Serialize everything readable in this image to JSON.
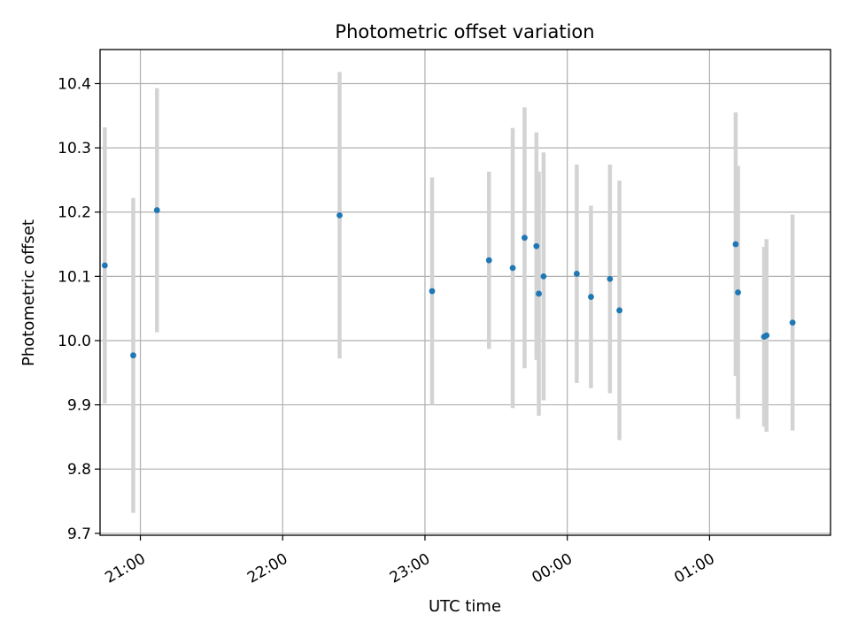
{
  "chart_data": {
    "type": "scatter",
    "title": "Photometric offset variation",
    "xlabel": "UTC time",
    "ylabel": "Photometric offset",
    "grid": true,
    "legend": "none",
    "x_tick_labels": [
      "21:00",
      "22:00",
      "23:00",
      "00:00",
      "01:00"
    ],
    "y_tick_labels": [
      "9.7",
      "9.8",
      "9.9",
      "10.0",
      "10.1",
      "10.2",
      "10.3",
      "10.4"
    ],
    "xlim": [
      "20:43",
      "01:51"
    ],
    "ylim": [
      9.697,
      10.453
    ],
    "colors": {
      "point": "#1f77b4",
      "errorbar": "#d3d3d3",
      "grid": "#b0b0b0"
    },
    "series": [
      {
        "points": [
          {
            "time": "20:45",
            "y": 10.117,
            "err": 0.215
          },
          {
            "time": "20:57",
            "y": 9.977,
            "err": 0.245
          },
          {
            "time": "21:07",
            "y": 10.203,
            "err": 0.19
          },
          {
            "time": "22:24",
            "y": 10.195,
            "err": 0.223
          },
          {
            "time": "23:03",
            "y": 10.077,
            "err": 0.177
          },
          {
            "time": "23:27",
            "y": 10.125,
            "err": 0.138
          },
          {
            "time": "23:37",
            "y": 10.113,
            "err": 0.218
          },
          {
            "time": "23:42",
            "y": 10.16,
            "err": 0.203
          },
          {
            "time": "23:47",
            "y": 10.147,
            "err": 0.177
          },
          {
            "time": "23:48",
            "y": 10.073,
            "err": 0.19
          },
          {
            "time": "23:50",
            "y": 10.1,
            "err": 0.193
          },
          {
            "time": "00:04",
            "y": 10.104,
            "err": 0.17
          },
          {
            "time": "00:10",
            "y": 10.068,
            "err": 0.142
          },
          {
            "time": "00:18",
            "y": 10.096,
            "err": 0.178
          },
          {
            "time": "00:22",
            "y": 10.047,
            "err": 0.202
          },
          {
            "time": "01:11",
            "y": 10.15,
            "err": 0.205
          },
          {
            "time": "01:12",
            "y": 10.075,
            "err": 0.197
          },
          {
            "time": "01:23",
            "y": 10.006,
            "err": 0.14
          },
          {
            "time": "01:24",
            "y": 10.008,
            "err": 0.15
          },
          {
            "time": "01:35",
            "y": 10.028,
            "err": 0.168
          }
        ]
      }
    ]
  }
}
